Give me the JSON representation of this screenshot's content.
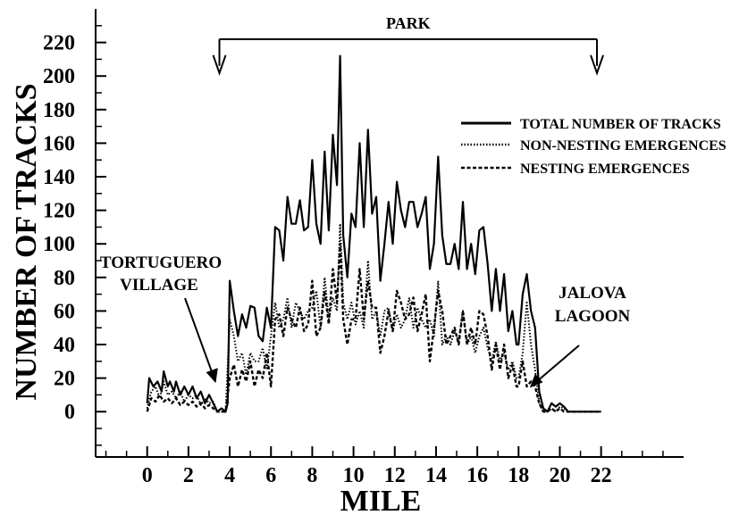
{
  "chart_data": {
    "type": "line",
    "xlabel": "MILE",
    "ylabel": "NUMBER OF TRACKS",
    "xlim": [
      -2.5,
      26
    ],
    "ylim": [
      -27,
      240
    ],
    "xticks": [
      0,
      2,
      4,
      6,
      8,
      10,
      12,
      14,
      16,
      18,
      20,
      22
    ],
    "yticks": [
      0,
      20,
      40,
      60,
      80,
      100,
      120,
      140,
      160,
      180,
      200,
      220
    ],
    "legend_position": "top-right",
    "series": [
      {
        "name": "TOTAL NUMBER OF TRACKS",
        "style": "solid",
        "points": [
          [
            0.0,
            5
          ],
          [
            0.1,
            20
          ],
          [
            0.3,
            15
          ],
          [
            0.5,
            18
          ],
          [
            0.7,
            12
          ],
          [
            0.8,
            24
          ],
          [
            1.0,
            15
          ],
          [
            1.1,
            18
          ],
          [
            1.3,
            12
          ],
          [
            1.4,
            18
          ],
          [
            1.6,
            10
          ],
          [
            1.8,
            15
          ],
          [
            2.0,
            10
          ],
          [
            2.2,
            15
          ],
          [
            2.4,
            8
          ],
          [
            2.6,
            12
          ],
          [
            2.8,
            5
          ],
          [
            3.0,
            10
          ],
          [
            3.2,
            5
          ],
          [
            3.4,
            0
          ],
          [
            3.6,
            2
          ],
          [
            3.8,
            0
          ],
          [
            3.9,
            5
          ],
          [
            4.0,
            78
          ],
          [
            4.2,
            60
          ],
          [
            4.4,
            45
          ],
          [
            4.6,
            58
          ],
          [
            4.8,
            50
          ],
          [
            5.0,
            63
          ],
          [
            5.2,
            62
          ],
          [
            5.4,
            45
          ],
          [
            5.6,
            42
          ],
          [
            5.8,
            62
          ],
          [
            6.0,
            50
          ],
          [
            6.2,
            110
          ],
          [
            6.4,
            108
          ],
          [
            6.6,
            90
          ],
          [
            6.8,
            128
          ],
          [
            7.0,
            112
          ],
          [
            7.2,
            112
          ],
          [
            7.4,
            126
          ],
          [
            7.6,
            108
          ],
          [
            7.8,
            110
          ],
          [
            8.0,
            150
          ],
          [
            8.2,
            112
          ],
          [
            8.4,
            100
          ],
          [
            8.6,
            155
          ],
          [
            8.8,
            108
          ],
          [
            9.0,
            165
          ],
          [
            9.2,
            135
          ],
          [
            9.35,
            212
          ],
          [
            9.5,
            105
          ],
          [
            9.7,
            80
          ],
          [
            9.9,
            118
          ],
          [
            10.1,
            110
          ],
          [
            10.3,
            160
          ],
          [
            10.5,
            110
          ],
          [
            10.7,
            168
          ],
          [
            10.9,
            118
          ],
          [
            11.1,
            128
          ],
          [
            11.3,
            78
          ],
          [
            11.5,
            100
          ],
          [
            11.7,
            125
          ],
          [
            11.9,
            100
          ],
          [
            12.1,
            137
          ],
          [
            12.3,
            120
          ],
          [
            12.5,
            110
          ],
          [
            12.7,
            125
          ],
          [
            12.9,
            125
          ],
          [
            13.1,
            110
          ],
          [
            13.3,
            118
          ],
          [
            13.5,
            128
          ],
          [
            13.7,
            85
          ],
          [
            13.9,
            100
          ],
          [
            14.1,
            152
          ],
          [
            14.3,
            105
          ],
          [
            14.5,
            88
          ],
          [
            14.7,
            88
          ],
          [
            14.9,
            100
          ],
          [
            15.1,
            85
          ],
          [
            15.3,
            125
          ],
          [
            15.5,
            85
          ],
          [
            15.7,
            100
          ],
          [
            15.9,
            82
          ],
          [
            16.1,
            108
          ],
          [
            16.3,
            110
          ],
          [
            16.5,
            88
          ],
          [
            16.7,
            60
          ],
          [
            16.9,
            85
          ],
          [
            17.1,
            60
          ],
          [
            17.3,
            82
          ],
          [
            17.5,
            48
          ],
          [
            17.7,
            60
          ],
          [
            17.9,
            40
          ],
          [
            18.0,
            40
          ],
          [
            18.2,
            70
          ],
          [
            18.4,
            82
          ],
          [
            18.6,
            60
          ],
          [
            18.8,
            50
          ],
          [
            19.0,
            12
          ],
          [
            19.2,
            2
          ],
          [
            19.4,
            0
          ],
          [
            19.6,
            5
          ],
          [
            19.8,
            3
          ],
          [
            20.0,
            5
          ],
          [
            20.2,
            3
          ],
          [
            20.4,
            0
          ],
          [
            20.6,
            0
          ],
          [
            20.8,
            0
          ],
          [
            21.0,
            0
          ],
          [
            21.5,
            0
          ],
          [
            22.0,
            0
          ]
        ]
      },
      {
        "name": "NON-NESTING EMERGENCES",
        "style": "dotted",
        "points": [
          [
            0.0,
            2
          ],
          [
            0.2,
            12
          ],
          [
            0.4,
            15
          ],
          [
            0.6,
            8
          ],
          [
            0.8,
            18
          ],
          [
            1.0,
            10
          ],
          [
            1.2,
            12
          ],
          [
            1.4,
            8
          ],
          [
            1.6,
            12
          ],
          [
            1.8,
            6
          ],
          [
            2.0,
            10
          ],
          [
            2.2,
            8
          ],
          [
            2.4,
            10
          ],
          [
            2.6,
            4
          ],
          [
            2.8,
            8
          ],
          [
            3.0,
            5
          ],
          [
            3.2,
            6
          ],
          [
            3.4,
            0
          ],
          [
            3.6,
            0
          ],
          [
            3.8,
            0
          ],
          [
            4.0,
            55
          ],
          [
            4.2,
            45
          ],
          [
            4.4,
            30
          ],
          [
            4.6,
            35
          ],
          [
            4.8,
            22
          ],
          [
            5.0,
            35
          ],
          [
            5.2,
            30
          ],
          [
            5.4,
            30
          ],
          [
            5.6,
            38
          ],
          [
            5.8,
            25
          ],
          [
            6.0,
            45
          ],
          [
            6.2,
            65
          ],
          [
            6.4,
            50
          ],
          [
            6.6,
            55
          ],
          [
            6.8,
            68
          ],
          [
            7.0,
            50
          ],
          [
            7.2,
            65
          ],
          [
            7.4,
            60
          ],
          [
            7.6,
            55
          ],
          [
            7.8,
            60
          ],
          [
            8.0,
            62
          ],
          [
            8.2,
            72
          ],
          [
            8.4,
            50
          ],
          [
            8.6,
            80
          ],
          [
            8.8,
            55
          ],
          [
            9.0,
            68
          ],
          [
            9.2,
            60
          ],
          [
            9.35,
            112
          ],
          [
            9.5,
            65
          ],
          [
            9.7,
            55
          ],
          [
            9.9,
            65
          ],
          [
            10.1,
            52
          ],
          [
            10.3,
            60
          ],
          [
            10.5,
            50
          ],
          [
            10.7,
            90
          ],
          [
            10.9,
            55
          ],
          [
            11.1,
            60
          ],
          [
            11.3,
            45
          ],
          [
            11.5,
            60
          ],
          [
            11.7,
            62
          ],
          [
            11.9,
            48
          ],
          [
            12.1,
            58
          ],
          [
            12.3,
            50
          ],
          [
            12.5,
            55
          ],
          [
            12.7,
            68
          ],
          [
            12.9,
            50
          ],
          [
            13.1,
            62
          ],
          [
            13.3,
            55
          ],
          [
            13.5,
            50
          ],
          [
            13.7,
            55
          ],
          [
            13.9,
            45
          ],
          [
            14.1,
            78
          ],
          [
            14.3,
            40
          ],
          [
            14.5,
            45
          ],
          [
            14.7,
            40
          ],
          [
            14.9,
            48
          ],
          [
            15.1,
            42
          ],
          [
            15.3,
            60
          ],
          [
            15.5,
            40
          ],
          [
            15.7,
            45
          ],
          [
            15.9,
            35
          ],
          [
            16.1,
            45
          ],
          [
            16.3,
            50
          ],
          [
            16.5,
            38
          ],
          [
            16.7,
            30
          ],
          [
            16.9,
            42
          ],
          [
            17.1,
            30
          ],
          [
            17.3,
            35
          ],
          [
            17.5,
            25
          ],
          [
            17.7,
            30
          ],
          [
            17.9,
            20
          ],
          [
            18.0,
            20
          ],
          [
            18.2,
            35
          ],
          [
            18.4,
            65
          ],
          [
            18.6,
            40
          ],
          [
            18.8,
            25
          ],
          [
            19.0,
            5
          ],
          [
            19.2,
            0
          ],
          [
            19.4,
            0
          ],
          [
            19.6,
            2
          ],
          [
            19.8,
            0
          ],
          [
            20.0,
            3
          ],
          [
            20.2,
            2
          ],
          [
            20.4,
            0
          ],
          [
            20.6,
            0
          ],
          [
            21.0,
            0
          ],
          [
            22.0,
            0
          ]
        ]
      },
      {
        "name": "NESTING EMERGENCES",
        "style": "dashed",
        "points": [
          [
            0.0,
            0
          ],
          [
            0.2,
            8
          ],
          [
            0.4,
            6
          ],
          [
            0.6,
            10
          ],
          [
            0.8,
            6
          ],
          [
            1.0,
            8
          ],
          [
            1.2,
            5
          ],
          [
            1.4,
            8
          ],
          [
            1.6,
            4
          ],
          [
            1.8,
            6
          ],
          [
            2.0,
            4
          ],
          [
            2.2,
            6
          ],
          [
            2.4,
            3
          ],
          [
            2.6,
            5
          ],
          [
            2.8,
            2
          ],
          [
            3.0,
            4
          ],
          [
            3.2,
            2
          ],
          [
            3.4,
            0
          ],
          [
            3.6,
            0
          ],
          [
            3.8,
            0
          ],
          [
            4.0,
            20
          ],
          [
            4.2,
            28
          ],
          [
            4.4,
            15
          ],
          [
            4.6,
            25
          ],
          [
            4.8,
            18
          ],
          [
            5.0,
            30
          ],
          [
            5.2,
            15
          ],
          [
            5.4,
            25
          ],
          [
            5.6,
            20
          ],
          [
            5.8,
            35
          ],
          [
            6.0,
            15
          ],
          [
            6.2,
            55
          ],
          [
            6.4,
            58
          ],
          [
            6.6,
            45
          ],
          [
            6.8,
            62
          ],
          [
            7.0,
            55
          ],
          [
            7.2,
            50
          ],
          [
            7.4,
            62
          ],
          [
            7.6,
            48
          ],
          [
            7.8,
            52
          ],
          [
            8.0,
            78
          ],
          [
            8.2,
            45
          ],
          [
            8.4,
            50
          ],
          [
            8.6,
            72
          ],
          [
            8.8,
            52
          ],
          [
            9.0,
            85
          ],
          [
            9.2,
            65
          ],
          [
            9.35,
            100
          ],
          [
            9.5,
            55
          ],
          [
            9.7,
            40
          ],
          [
            9.9,
            55
          ],
          [
            10.1,
            55
          ],
          [
            10.3,
            85
          ],
          [
            10.5,
            55
          ],
          [
            10.7,
            78
          ],
          [
            10.9,
            62
          ],
          [
            11.1,
            62
          ],
          [
            11.3,
            35
          ],
          [
            11.5,
            45
          ],
          [
            11.7,
            60
          ],
          [
            11.9,
            48
          ],
          [
            12.1,
            72
          ],
          [
            12.3,
            65
          ],
          [
            12.5,
            55
          ],
          [
            12.7,
            58
          ],
          [
            12.9,
            68
          ],
          [
            13.1,
            48
          ],
          [
            13.3,
            58
          ],
          [
            13.5,
            70
          ],
          [
            13.7,
            30
          ],
          [
            13.9,
            50
          ],
          [
            14.1,
            72
          ],
          [
            14.3,
            60
          ],
          [
            14.5,
            40
          ],
          [
            14.7,
            45
          ],
          [
            14.9,
            50
          ],
          [
            15.1,
            40
          ],
          [
            15.3,
            60
          ],
          [
            15.5,
            40
          ],
          [
            15.7,
            50
          ],
          [
            15.9,
            40
          ],
          [
            16.1,
            60
          ],
          [
            16.3,
            58
          ],
          [
            16.5,
            45
          ],
          [
            16.7,
            25
          ],
          [
            16.9,
            40
          ],
          [
            17.1,
            25
          ],
          [
            17.3,
            40
          ],
          [
            17.5,
            20
          ],
          [
            17.7,
            28
          ],
          [
            17.9,
            15
          ],
          [
            18.0,
            15
          ],
          [
            18.2,
            30
          ],
          [
            18.4,
            15
          ],
          [
            18.6,
            18
          ],
          [
            18.8,
            15
          ],
          [
            19.0,
            5
          ],
          [
            19.2,
            0
          ],
          [
            19.4,
            0
          ],
          [
            19.6,
            2
          ],
          [
            19.8,
            0
          ],
          [
            20.0,
            2
          ],
          [
            20.2,
            0
          ],
          [
            20.4,
            0
          ],
          [
            21.0,
            0
          ],
          [
            22.0,
            0
          ]
        ]
      }
    ],
    "annotations": {
      "park": {
        "text": "PARK",
        "from_x": 3.5,
        "to_x": 21.8,
        "y": 222
      },
      "tortuguero": {
        "lines": [
          "TORTUGUERO",
          "VILLAGE"
        ],
        "arrow_tip": [
          3.3,
          18
        ]
      },
      "jalova": {
        "lines": [
          "JALOVA",
          "LAGOON"
        ],
        "arrow_tip": [
          18.6,
          15
        ]
      }
    }
  }
}
